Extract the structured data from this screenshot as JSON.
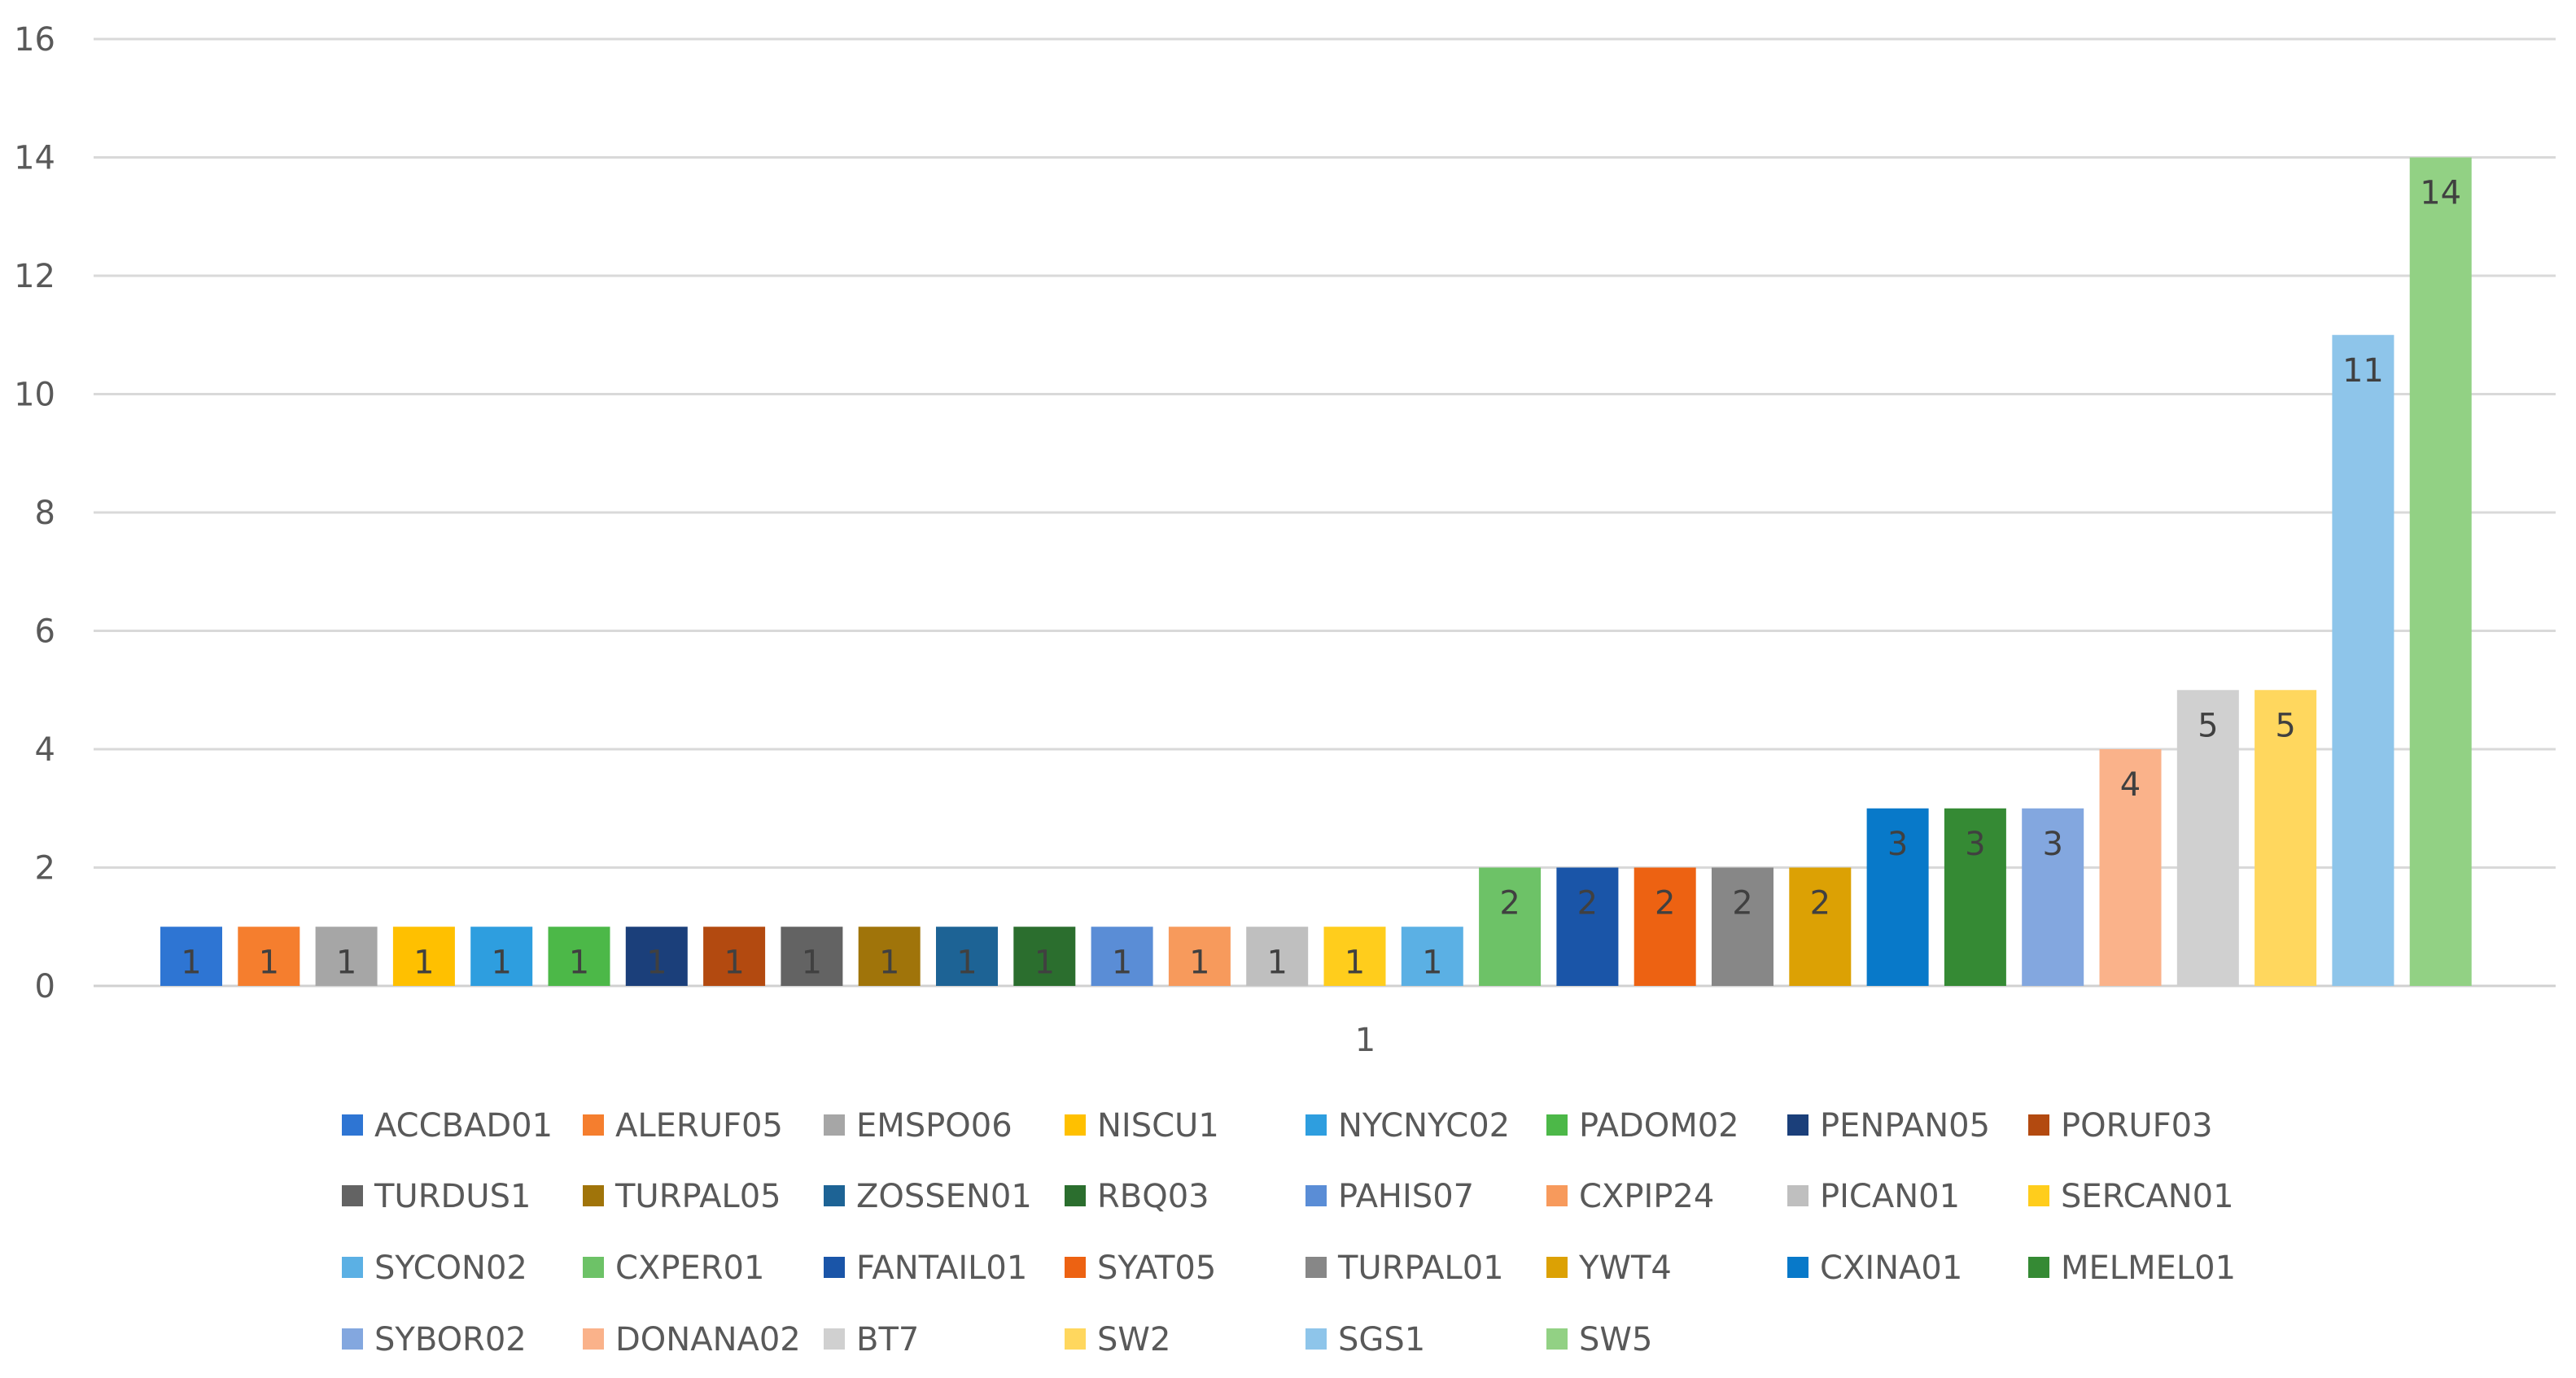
{
  "chart_data": {
    "type": "bar",
    "categories": [
      "1"
    ],
    "ylim": [
      0,
      16
    ],
    "yticks": [
      0,
      2,
      4,
      6,
      8,
      10,
      12,
      14,
      16
    ],
    "grid": true,
    "legend_position": "bottom",
    "data_labels": true,
    "series": [
      {
        "name": "ACCBAD01",
        "values": [
          1
        ],
        "color": "#2E75D3"
      },
      {
        "name": "ALERUF05",
        "values": [
          1
        ],
        "color": "#F57E2E"
      },
      {
        "name": "EMSPO06",
        "values": [
          1
        ],
        "color": "#A6A6A6"
      },
      {
        "name": "NISCU1",
        "values": [
          1
        ],
        "color": "#FFC000"
      },
      {
        "name": "NYCNYC02",
        "values": [
          1
        ],
        "color": "#2E9EDF"
      },
      {
        "name": "PADOM02",
        "values": [
          1
        ],
        "color": "#4CB848"
      },
      {
        "name": "PENPAN05",
        "values": [
          1
        ],
        "color": "#1B3F7A"
      },
      {
        "name": "PORUF03",
        "values": [
          1
        ],
        "color": "#B34A10"
      },
      {
        "name": "TURDUS1",
        "values": [
          1
        ],
        "color": "#636363"
      },
      {
        "name": "TURPAL05",
        "values": [
          1
        ],
        "color": "#A0740A"
      },
      {
        "name": "ZOSSEN01",
        "values": [
          1
        ],
        "color": "#1D6395"
      },
      {
        "name": "RBQ03",
        "values": [
          1
        ],
        "color": "#2B6E2E"
      },
      {
        "name": "PAHIS07",
        "values": [
          1
        ],
        "color": "#5A8DD6"
      },
      {
        "name": "CXPIP24",
        "values": [
          1
        ],
        "color": "#F79A5C"
      },
      {
        "name": "PICAN01",
        "values": [
          1
        ],
        "color": "#BFBFBF"
      },
      {
        "name": "SERCAN01",
        "values": [
          1
        ],
        "color": "#FFCD1C"
      },
      {
        "name": "SYCON02",
        "values": [
          1
        ],
        "color": "#5BB0E4"
      },
      {
        "name": "CXPER01",
        "values": [
          2
        ],
        "color": "#6DC267"
      },
      {
        "name": "FANTAIL01",
        "values": [
          2
        ],
        "color": "#1A55A8"
      },
      {
        "name": "SYAT05",
        "values": [
          2
        ],
        "color": "#ED6212"
      },
      {
        "name": "TURPAL01",
        "values": [
          2
        ],
        "color": "#878787"
      },
      {
        "name": "YWT4",
        "values": [
          2
        ],
        "color": "#DCA104"
      },
      {
        "name": "CXINA01",
        "values": [
          3
        ],
        "color": "#0879C9"
      },
      {
        "name": "MELMEL01",
        "values": [
          3
        ],
        "color": "#358A34"
      },
      {
        "name": "SYBOR02",
        "values": [
          3
        ],
        "color": "#83A7DF"
      },
      {
        "name": "DONANA02",
        "values": [
          4
        ],
        "color": "#FAB28A"
      },
      {
        "name": "BT7",
        "values": [
          5
        ],
        "color": "#D0D0D0"
      },
      {
        "name": "SW2",
        "values": [
          5
        ],
        "color": "#FFD75E"
      },
      {
        "name": "SGS1",
        "values": [
          11
        ],
        "color": "#8EC5EA"
      },
      {
        "name": "SW5",
        "values": [
          14
        ],
        "color": "#92D184"
      }
    ]
  }
}
